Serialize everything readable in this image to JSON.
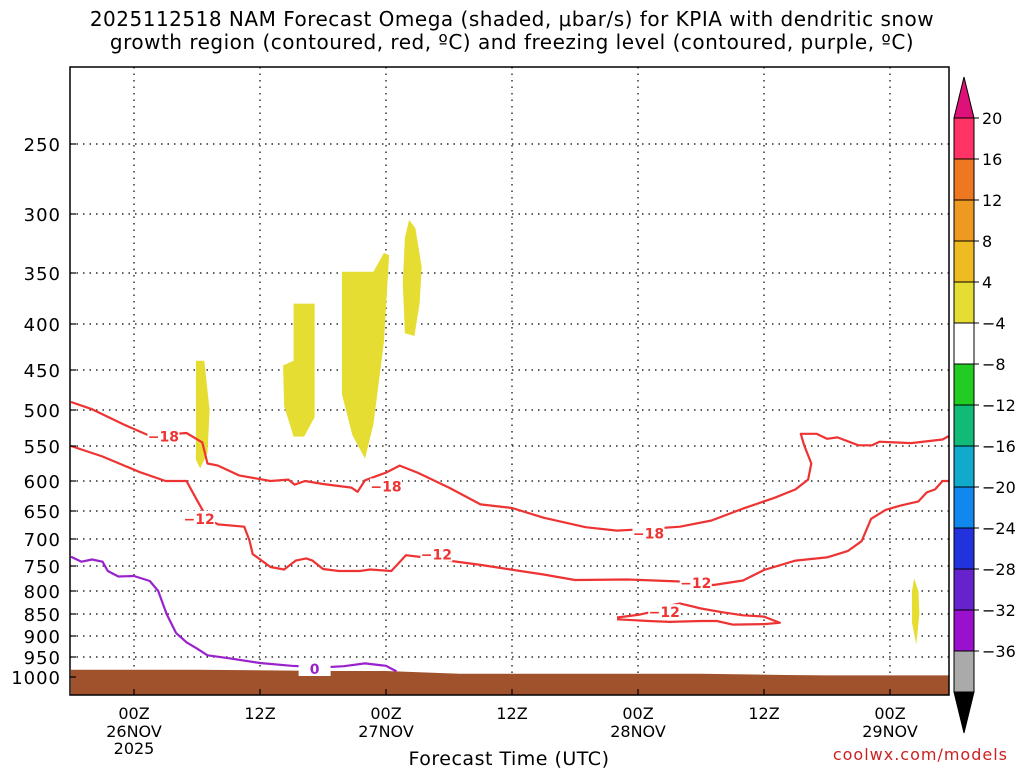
{
  "chart_data": {
    "type": "time-height",
    "title": "2025112518 NAM Forecast Omega (shaded, μbar/s) for KPIA with dendritic snow\ngrowth region (contoured, red, ºC) and freezing level (contoured, purple, ºC)",
    "xlabel": "Forecast Time (UTC)",
    "ylabel": "",
    "x_range_hours": [
      0,
      84
    ],
    "y_range_hpa": [
      1000,
      200
    ],
    "y_ticks": [
      250,
      300,
      350,
      400,
      450,
      500,
      550,
      600,
      650,
      700,
      750,
      800,
      850,
      900,
      950,
      1000
    ],
    "y_tick_labels": [
      "250",
      "300",
      "350",
      "400",
      "450",
      "500",
      "550",
      "600",
      "650",
      "700",
      "750",
      "800",
      "850",
      "900",
      "950",
      "1000"
    ],
    "x_ticks": [
      {
        "hour": 6,
        "time": "00Z",
        "date": "26NOV",
        "year": "2025"
      },
      {
        "hour": 18,
        "time": "12Z",
        "date": "",
        "year": ""
      },
      {
        "hour": 30,
        "time": "00Z",
        "date": "27NOV",
        "year": ""
      },
      {
        "hour": 42,
        "time": "12Z",
        "date": "",
        "year": ""
      },
      {
        "hour": 54,
        "time": "00Z",
        "date": "28NOV",
        "year": ""
      },
      {
        "hour": 66,
        "time": "12Z",
        "date": "",
        "year": ""
      },
      {
        "hour": 78,
        "time": "00Z",
        "date": "29NOV",
        "year": ""
      }
    ],
    "grid": true,
    "colorbar": {
      "labels": [
        "20",
        "16",
        "12",
        "8",
        "4",
        "−4",
        "−8",
        "−12",
        "−16",
        "−20",
        "−24",
        "−28",
        "−32",
        "−36"
      ],
      "colors": [
        "#ff3366",
        "#ee7722",
        "#ee9922",
        "#eebb22",
        "#e6dd33",
        "#ffffff",
        "#22cc22",
        "#11bb77",
        "#11aacc",
        "#1188ee",
        "#2233dd",
        "#6622cc",
        "#9911cc",
        "#aaaaaa"
      ],
      "top_triangle_color": "#dd1177",
      "bottom_triangle_color": "#000000"
    },
    "omega_regions": [
      {
        "label": "4 to 8",
        "points": [
          [
            11.9,
            440
          ],
          [
            12.7,
            440
          ],
          [
            13.2,
            500
          ],
          [
            13.0,
            560
          ],
          [
            12.3,
            582
          ],
          [
            11.9,
            570
          ]
        ]
      },
      {
        "label": "4 to 8",
        "points": [
          [
            21.2,
            380
          ],
          [
            23.2,
            380
          ],
          [
            23.2,
            510
          ],
          [
            22.2,
            537
          ],
          [
            21.2,
            537
          ],
          [
            20.3,
            495
          ],
          [
            20.2,
            445
          ],
          [
            21.2,
            440
          ]
        ]
      },
      {
        "label": "4 to 8",
        "points": [
          [
            25.8,
            349
          ],
          [
            28.8,
            349
          ],
          [
            29.8,
            333
          ],
          [
            30.3,
            335
          ],
          [
            29.8,
            420
          ],
          [
            28.8,
            520
          ],
          [
            28.0,
            568
          ],
          [
            26.8,
            535
          ],
          [
            25.8,
            480
          ],
          [
            25.8,
            420
          ]
        ]
      },
      {
        "label": "4 to 8",
        "points": [
          [
            32.2,
            305
          ],
          [
            32.8,
            312
          ],
          [
            33.4,
            345
          ],
          [
            33.2,
            380
          ],
          [
            32.7,
            413
          ],
          [
            31.8,
            410
          ],
          [
            31.6,
            360
          ],
          [
            31.8,
            320
          ]
        ]
      },
      {
        "label": "4 to 8",
        "points": [
          [
            80.3,
            775
          ],
          [
            80.7,
            800
          ],
          [
            80.8,
            850
          ],
          [
            80.5,
            920
          ],
          [
            80.1,
            870
          ],
          [
            80.1,
            800
          ]
        ]
      }
    ],
    "omega_negative_regions": [
      {
        "label": "-8 to -4",
        "points": [
          [
            84,
            555
          ],
          [
            83.9,
            580
          ],
          [
            84,
            605
          ]
        ]
      }
    ],
    "contours": [
      {
        "name": "-18 C isotherm",
        "color": "#ee3333",
        "label": "−18",
        "label_points": [
          [
            8.8,
            537
          ],
          [
            30.0,
            609
          ],
          [
            55.0,
            690
          ]
        ],
        "points": [
          [
            0,
            490
          ],
          [
            2,
            499
          ],
          [
            5,
            520
          ],
          [
            7.5,
            536
          ],
          [
            11,
            532
          ],
          [
            12.5,
            545
          ],
          [
            13,
            575
          ],
          [
            14,
            578
          ],
          [
            16,
            592
          ],
          [
            19,
            600
          ],
          [
            20.7,
            598
          ],
          [
            21.3,
            606
          ],
          [
            22.3,
            600
          ],
          [
            24,
            605
          ],
          [
            26.7,
            611
          ],
          [
            27.3,
            618
          ],
          [
            28,
            599
          ],
          [
            30,
            588
          ],
          [
            31.3,
            578
          ],
          [
            33,
            588
          ],
          [
            36,
            611
          ],
          [
            39,
            639
          ],
          [
            42,
            645
          ],
          [
            45,
            662
          ],
          [
            49,
            679
          ],
          [
            52,
            685
          ],
          [
            55,
            682
          ],
          [
            58,
            678
          ],
          [
            61,
            667
          ],
          [
            64,
            646
          ],
          [
            67,
            628
          ],
          [
            69,
            614
          ],
          [
            70.2,
            598
          ],
          [
            70.5,
            575
          ],
          [
            69.8,
            548
          ],
          [
            69.5,
            533
          ],
          [
            71,
            533
          ],
          [
            72,
            540
          ],
          [
            73,
            538
          ],
          [
            75,
            549
          ],
          [
            76.3,
            549
          ],
          [
            77,
            544
          ],
          [
            80,
            546
          ],
          [
            83,
            541
          ],
          [
            84,
            533
          ]
        ]
      },
      {
        "name": "-12 C isotherm",
        "color": "#ee3333",
        "label": "−12",
        "label_points": [
          [
            12.2,
            664
          ],
          [
            34.8,
            729
          ],
          [
            59.5,
            784
          ],
          [
            56.5,
            846
          ]
        ],
        "points": [
          [
            0,
            550
          ],
          [
            3,
            565
          ],
          [
            6.5,
            587
          ],
          [
            9,
            600
          ],
          [
            11,
            600
          ],
          [
            12,
            632
          ],
          [
            13,
            664
          ],
          [
            14,
            674
          ],
          [
            16.5,
            678
          ],
          [
            17,
            703
          ],
          [
            17.3,
            728
          ],
          [
            19,
            752
          ],
          [
            20.3,
            757
          ],
          [
            21.4,
            740
          ],
          [
            22.4,
            736
          ],
          [
            23,
            740
          ],
          [
            24,
            756
          ],
          [
            25.5,
            760
          ],
          [
            27.5,
            760
          ],
          [
            28.5,
            757
          ],
          [
            30.5,
            760
          ],
          [
            31,
            749
          ],
          [
            31.9,
            730
          ],
          [
            34,
            735
          ],
          [
            39,
            748
          ],
          [
            45,
            767
          ],
          [
            48,
            778
          ],
          [
            53,
            777
          ],
          [
            58,
            781
          ],
          [
            61.2,
            788
          ],
          [
            64,
            779
          ],
          [
            66,
            758
          ],
          [
            69,
            740
          ],
          [
            72,
            734
          ],
          [
            74,
            722
          ],
          [
            75.3,
            704
          ],
          [
            76.2,
            664
          ],
          [
            77.6,
            648
          ],
          [
            79,
            641
          ],
          [
            80.7,
            634
          ],
          [
            81.5,
            619
          ],
          [
            82.3,
            614
          ],
          [
            83,
            600
          ],
          [
            84,
            600
          ]
        ]
      },
      {
        "name": "-12 C isotherm (closed)",
        "color": "#ee3333",
        "label": "",
        "points": [
          [
            52,
            858
          ],
          [
            54,
            852
          ],
          [
            56,
            842
          ],
          [
            57,
            832
          ],
          [
            58,
            827
          ],
          [
            60,
            838
          ],
          [
            62,
            846
          ],
          [
            64,
            853
          ],
          [
            66,
            856
          ],
          [
            67.5,
            870
          ],
          [
            66,
            873
          ],
          [
            63,
            874
          ],
          [
            61.5,
            866
          ],
          [
            60,
            866
          ],
          [
            57,
            868
          ],
          [
            55,
            866
          ],
          [
            52,
            862
          ]
        ]
      },
      {
        "name": "0 C freezing level",
        "color": "#9922cc",
        "label": "0",
        "label_points": [
          [
            23.2,
            980
          ]
        ],
        "points": [
          [
            0,
            733
          ],
          [
            1,
            742
          ],
          [
            2,
            738
          ],
          [
            3,
            742
          ],
          [
            3.5,
            760
          ],
          [
            4.5,
            771
          ],
          [
            6,
            770
          ],
          [
            7.5,
            780
          ],
          [
            8.3,
            800
          ],
          [
            9.1,
            850
          ],
          [
            10,
            893
          ],
          [
            11,
            915
          ],
          [
            12,
            930
          ],
          [
            13,
            946
          ],
          [
            15,
            953
          ],
          [
            18,
            965
          ],
          [
            21,
            972
          ],
          [
            24,
            976
          ],
          [
            26,
            973
          ],
          [
            28,
            966
          ],
          [
            30,
            972
          ],
          [
            31,
            986
          ]
        ]
      }
    ],
    "terrain": {
      "color": "#a0522d",
      "points": [
        [
          0,
          982
        ],
        [
          12,
          982
        ],
        [
          25,
          985
        ],
        [
          30,
          985
        ],
        [
          37,
          992
        ],
        [
          60,
          992
        ],
        [
          68,
          995
        ],
        [
          72,
          996
        ],
        [
          84,
          996
        ]
      ]
    }
  },
  "credit": "coolwx.com/models"
}
